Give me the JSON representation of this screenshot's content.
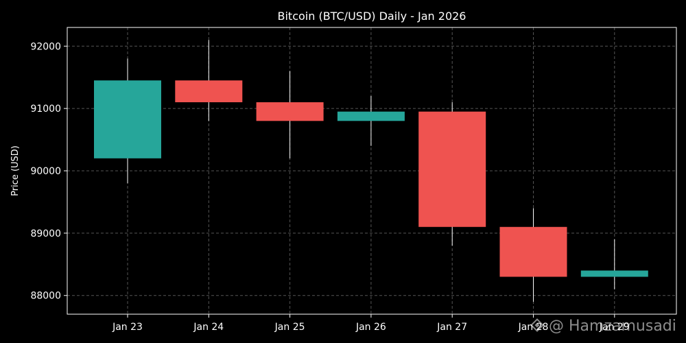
{
  "chart_data": {
    "type": "candlestick",
    "title": "Bitcoin (BTC/USD) Daily - Jan 2026",
    "xlabel": "",
    "ylabel": "Price (USD)",
    "categories": [
      "Jan 23",
      "Jan 24",
      "Jan 25",
      "Jan 26",
      "Jan 27",
      "Jan 28",
      "Jan 29"
    ],
    "candles": [
      {
        "date": "Jan 23",
        "open": 90200,
        "high": 91800,
        "low": 89800,
        "close": 91450
      },
      {
        "date": "Jan 24",
        "open": 91450,
        "high": 92100,
        "low": 90800,
        "close": 91100
      },
      {
        "date": "Jan 25",
        "open": 91100,
        "high": 91600,
        "low": 90200,
        "close": 90800
      },
      {
        "date": "Jan 26",
        "open": 90800,
        "high": 91200,
        "low": 90400,
        "close": 90950
      },
      {
        "date": "Jan 27",
        "open": 90950,
        "high": 91100,
        "low": 88800,
        "close": 89100
      },
      {
        "date": "Jan 28",
        "open": 89100,
        "high": 89400,
        "low": 87900,
        "close": 88300
      },
      {
        "date": "Jan 29",
        "open": 88300,
        "high": 88900,
        "low": 88100,
        "close": 88400
      }
    ],
    "yticks": [
      88000,
      89000,
      90000,
      91000,
      92000
    ],
    "ylim": [
      87700,
      92300
    ],
    "grid": true,
    "colors": {
      "up": "#26a69a",
      "down": "#ef5350",
      "wick": "#ffffff",
      "background": "#000000",
      "grid": "#555555",
      "text": "#ffffff"
    }
  },
  "watermark": {
    "text": "@ Hamzamusadi",
    "icon": "binance-diamond-icon"
  }
}
